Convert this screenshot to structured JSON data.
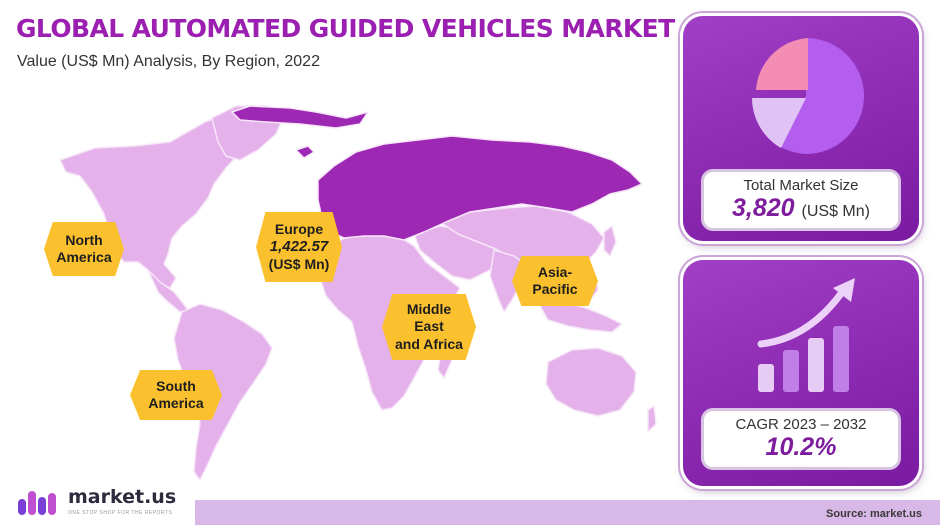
{
  "header": {
    "title": "GLOBAL AUTOMATED GUIDED VEHICLES MARKET",
    "subtitle": "Value (US$ Mn) Analysis, By Region, 2022"
  },
  "regions": {
    "north_america": {
      "line1": "North",
      "line2": "America"
    },
    "europe": {
      "name": "Europe",
      "value": "1,422.57",
      "unit": "(US$ Mn)"
    },
    "middle_east_africa": {
      "line1": "Middle",
      "line2": "East",
      "line3": "and Africa"
    },
    "asia_pacific": {
      "line1": "Asia-",
      "line2": "Pacific"
    },
    "south_america": {
      "line1": "South",
      "line2": "America"
    }
  },
  "market_size": {
    "label": "Total Market Size",
    "value": "3,820",
    "unit": "(US$ Mn)"
  },
  "cagr": {
    "label": "CAGR 2023 – 2032",
    "value": "10.2%"
  },
  "footer": {
    "brand": "market.us",
    "tagline": "ONE STOP SHOP FOR THE REPORTS",
    "source": "Source: market.us"
  },
  "colors": {
    "map_region": "#e4b1ea",
    "map_highlight": "#9d28b4",
    "accent": "#9b1fb0",
    "label_fill": "#fbc02d"
  },
  "icons": [
    "pie-chart-icon",
    "growth-chart-icon",
    "brand-logo-icon"
  ],
  "chart_data": {
    "type": "map",
    "title": "GLOBAL AUTOMATED GUIDED VEHICLES MARKET",
    "subtitle": "Value (US$ Mn) Analysis, By Region, 2022",
    "regions": [
      "North America",
      "Europe",
      "Middle East and Africa",
      "Asia-Pacific",
      "South America"
    ],
    "highlighted_region": "Europe",
    "values": {
      "Europe": 1422.57
    },
    "unit": "US$ Mn",
    "total_market_size": 3820,
    "cagr_2023_2032": 10.2
  }
}
